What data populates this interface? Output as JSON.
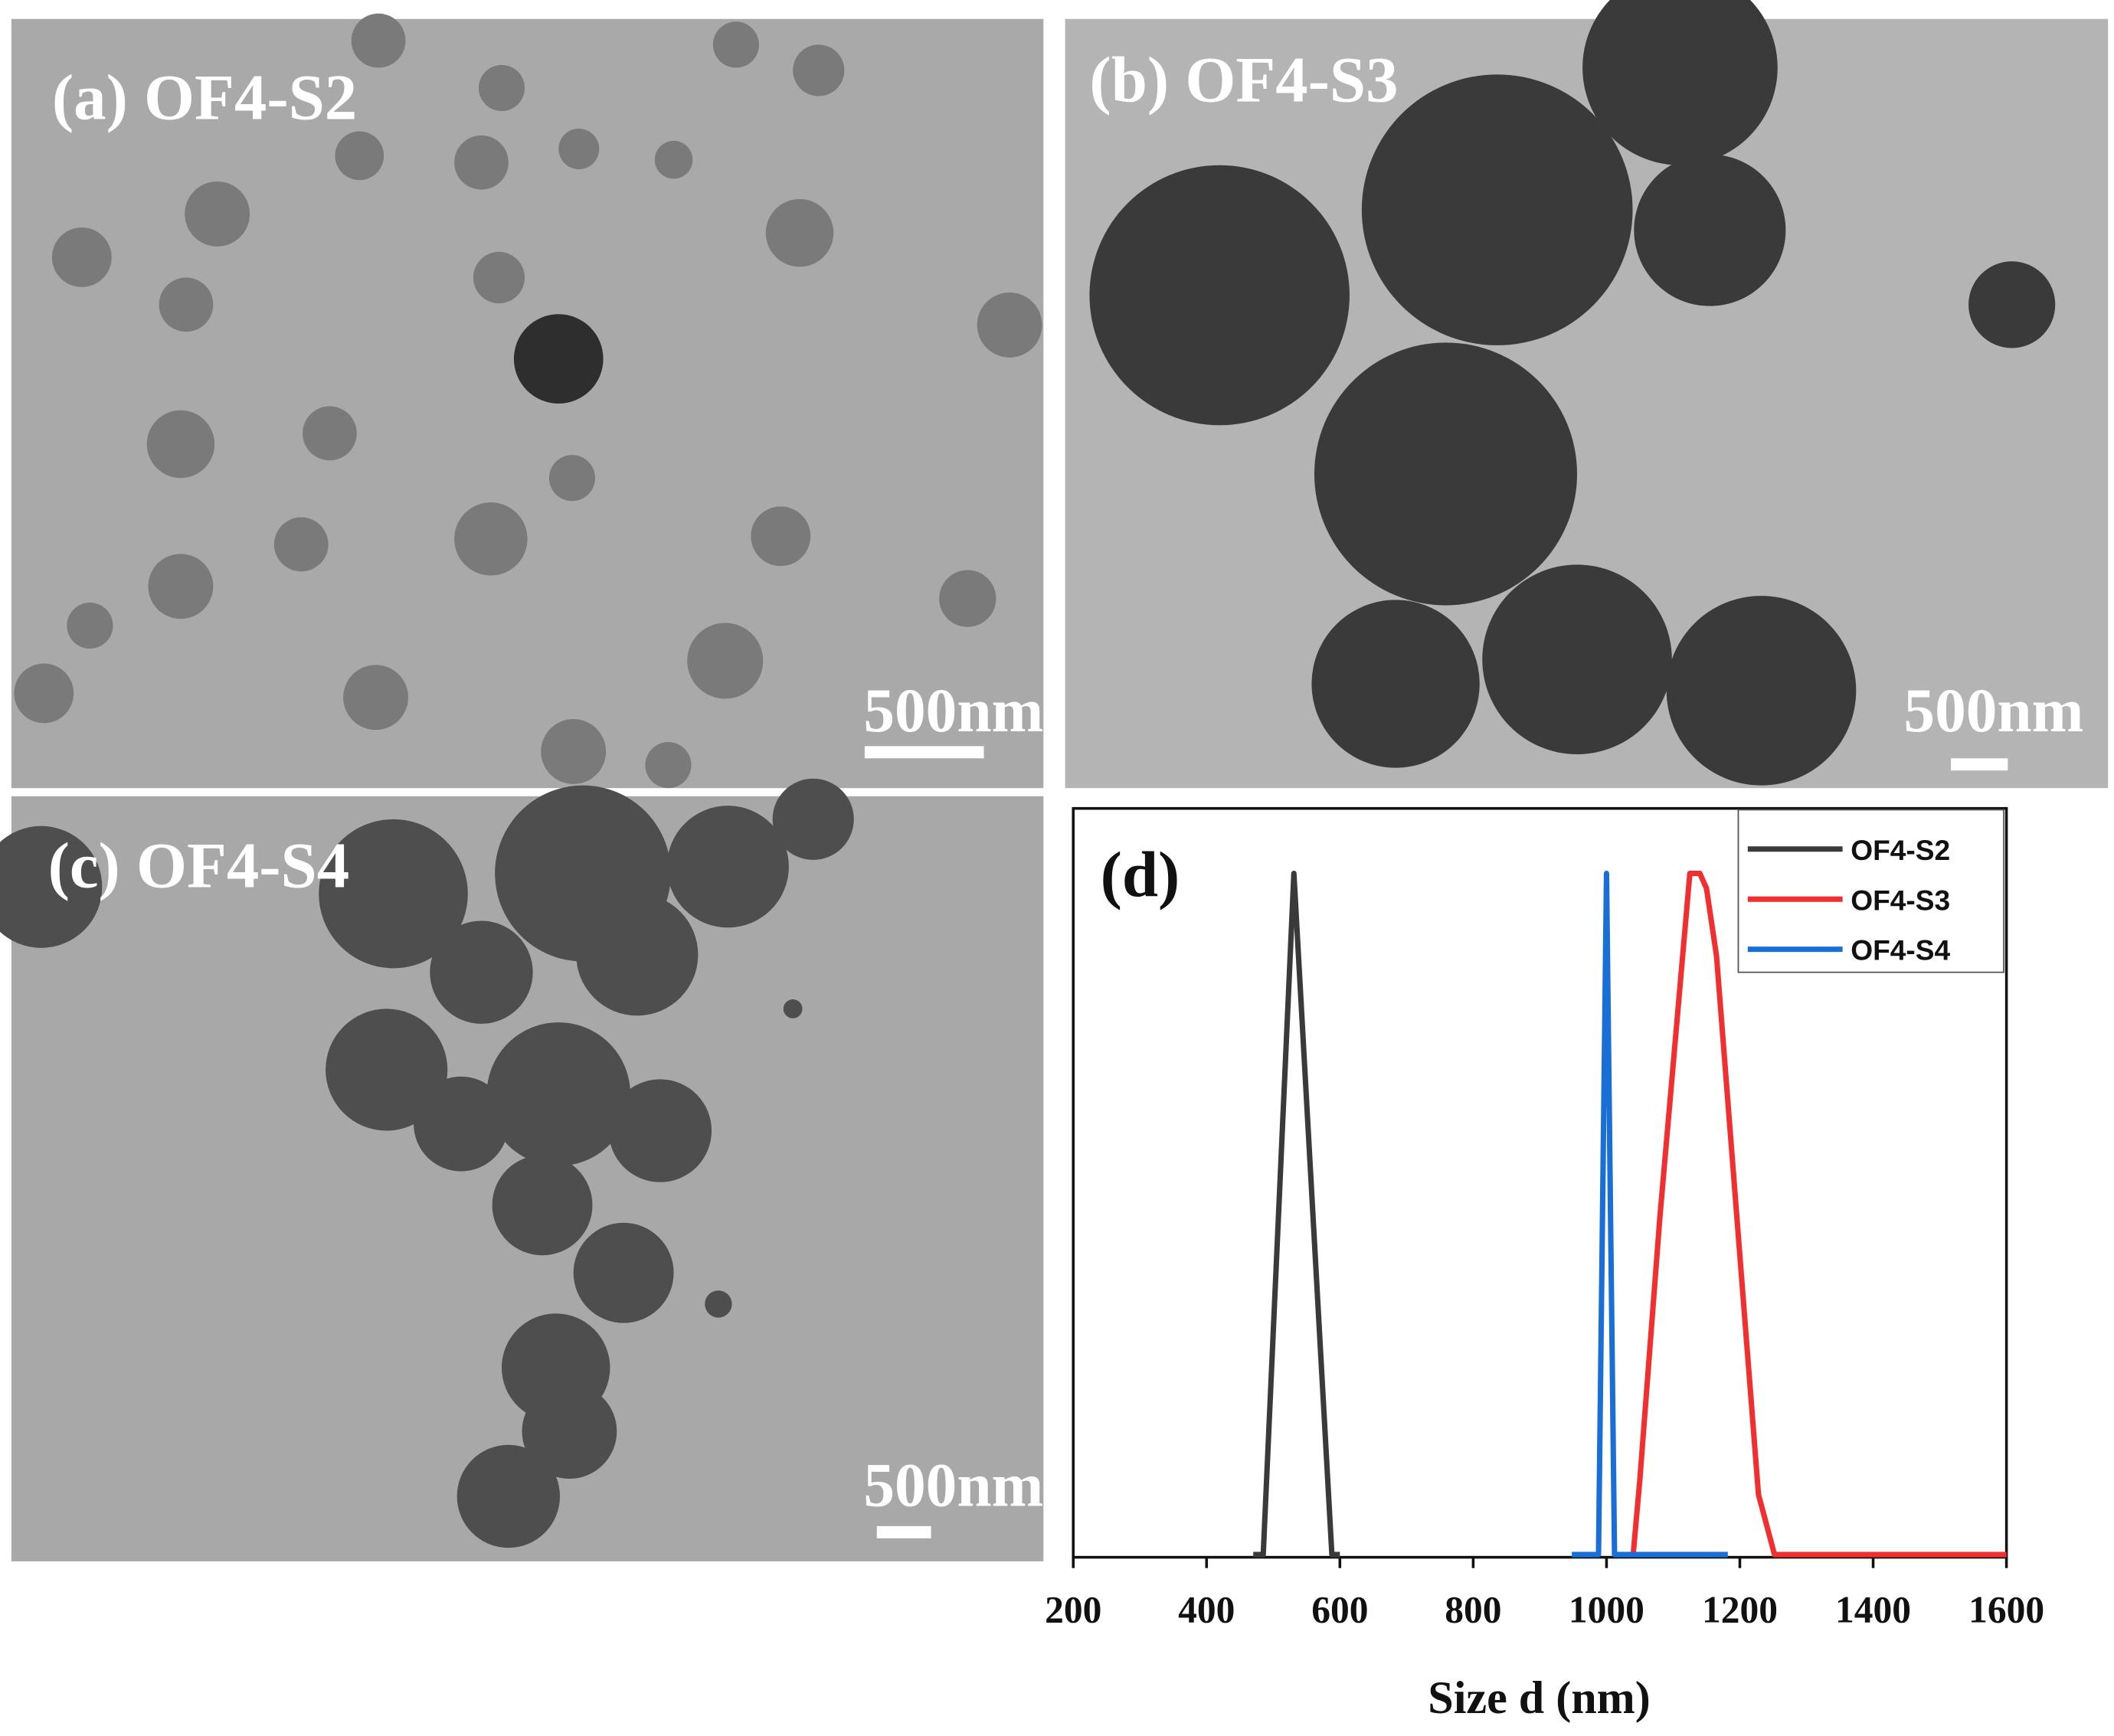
{
  "panels": [
    {
      "label": "(a) OF4-S2",
      "scale_bar": "500nm"
    },
    {
      "label": "(b) OF4-S3",
      "scale_bar": "500nm"
    },
    {
      "label": "(c) OF4-S4",
      "scale_bar": "500nm"
    }
  ],
  "chart_data": {
    "type": "line",
    "title": "(d)",
    "x_label": "Size d (nm)",
    "xlim": [
      200,
      1600
    ],
    "xticks": [
      200,
      400,
      600,
      800,
      1000,
      1200,
      1400,
      1600
    ],
    "ylim": [
      0,
      100
    ],
    "legend": "upper right",
    "series": [
      {
        "name": "OF4-S2",
        "color": "#3a3a3a",
        "x": [
          470,
          485,
          531,
          588,
          600
        ],
        "values": [
          0,
          0,
          91,
          0,
          0
        ]
      },
      {
        "name": "OF4-S3",
        "color": "#f03030",
        "x": [
          1040,
          1050,
          1080,
          1125,
          1140,
          1150,
          1165,
          1228,
          1252,
          1600
        ],
        "values": [
          0,
          10,
          45,
          91,
          91,
          89,
          80,
          8,
          0,
          0
        ]
      },
      {
        "name": "OF4-S4",
        "color": "#1a6fd6",
        "x": [
          948,
          988,
          1000,
          1012,
          1182
        ],
        "values": [
          0,
          0,
          91,
          0,
          0
        ]
      }
    ]
  }
}
